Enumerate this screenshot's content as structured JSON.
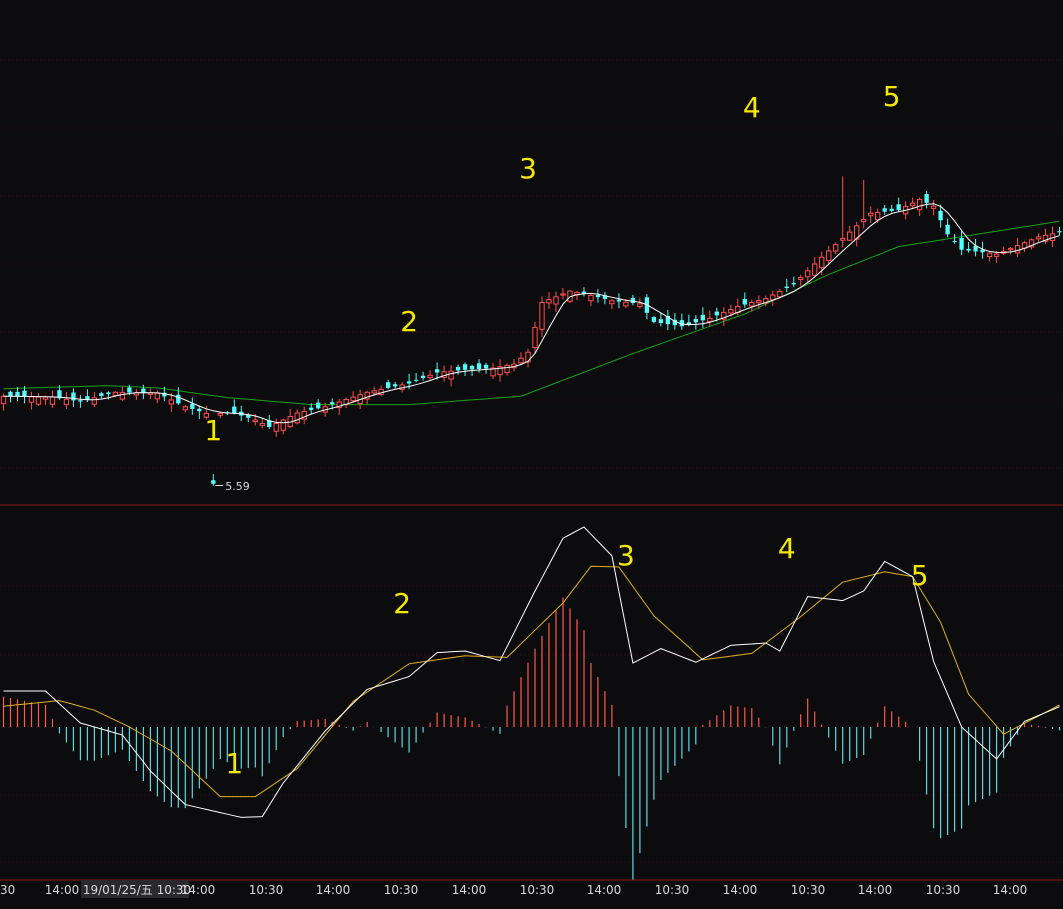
{
  "chart_data": [
    {
      "type": "candlestick",
      "panel": "price",
      "colors": {
        "up": "#ff4d4d",
        "down": "#54fcfc",
        "ma_short": "#ffffff",
        "ma_long": "#16a316",
        "grid": "#5a1010"
      },
      "min_label": "5.59",
      "min_label_arrow": "←",
      "wave_labels": [
        {
          "text": "1",
          "bar": 30
        },
        {
          "text": "2",
          "bar": 58
        },
        {
          "text": "3",
          "bar": 75
        },
        {
          "text": "4",
          "bar": 107
        },
        {
          "text": "5",
          "bar": 127
        }
      ]
    },
    {
      "type": "macd",
      "panel": "indicator",
      "colors": {
        "pos": "#ff5a4a",
        "neg": "#5fd7e0",
        "dif": "#ffffff",
        "dea": "#e0b020",
        "grid": "#5a1010"
      },
      "wave_labels": [
        {
          "text": "1",
          "bar": 33
        },
        {
          "text": "2",
          "bar": 57
        },
        {
          "text": "3",
          "bar": 89
        },
        {
          "text": "4",
          "bar": 112
        },
        {
          "text": "5",
          "bar": 131
        }
      ]
    }
  ],
  "x_axis": {
    "labels": [
      "30",
      "14:00",
      "19/01/25/五 10:30",
      "14:00",
      "10:30",
      "14:00",
      "10:30",
      "14:00",
      "10:30",
      "14:00",
      "10:30",
      "14:00",
      "10:30",
      "14:00",
      "10:30",
      "14:00"
    ],
    "highlight_index": 2
  }
}
